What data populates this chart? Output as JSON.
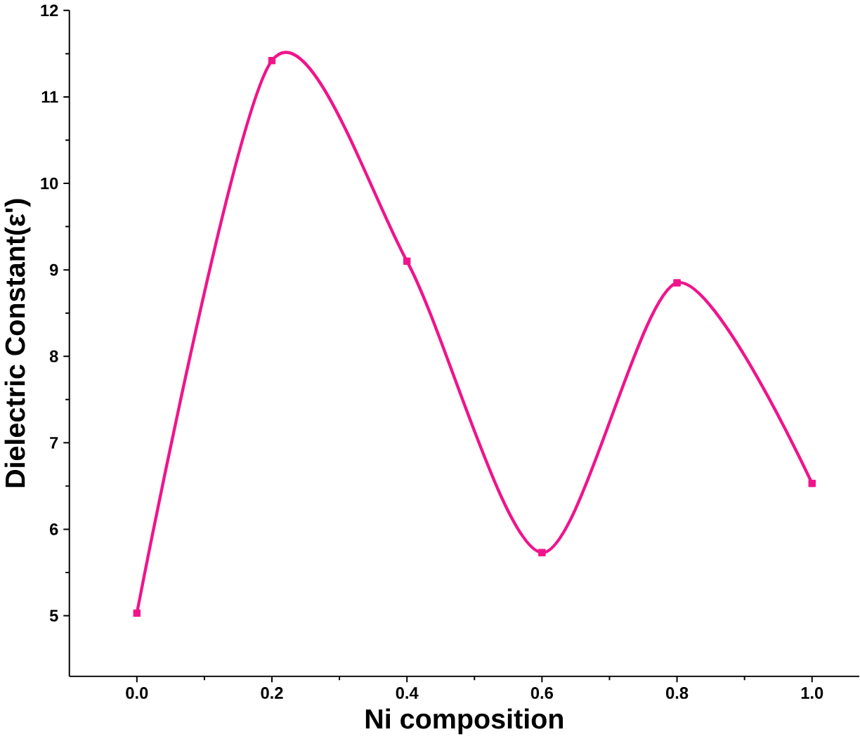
{
  "chart_data": {
    "type": "line",
    "xlabel": "Ni composition",
    "ylabel": "Dielectric Constant(ε')",
    "x": [
      0.0,
      0.2,
      0.4,
      0.6,
      0.8,
      1.0
    ],
    "series": [
      {
        "color": "#f0148c",
        "values": [
          5.03,
          11.42,
          9.1,
          5.73,
          8.85,
          6.53
        ]
      }
    ],
    "xlim": [
      -0.1,
      1.07
    ],
    "ylim": [
      4.3,
      12
    ],
    "xticks": [
      {
        "value": 0,
        "label": "0.0"
      },
      0.2,
      0.4,
      0.6,
      0.8,
      {
        "value": 1,
        "label": "1.0"
      }
    ],
    "yticks": [
      5,
      6,
      7,
      8,
      9,
      10,
      11,
      12
    ],
    "marker": "square",
    "line_style": "solid"
  }
}
